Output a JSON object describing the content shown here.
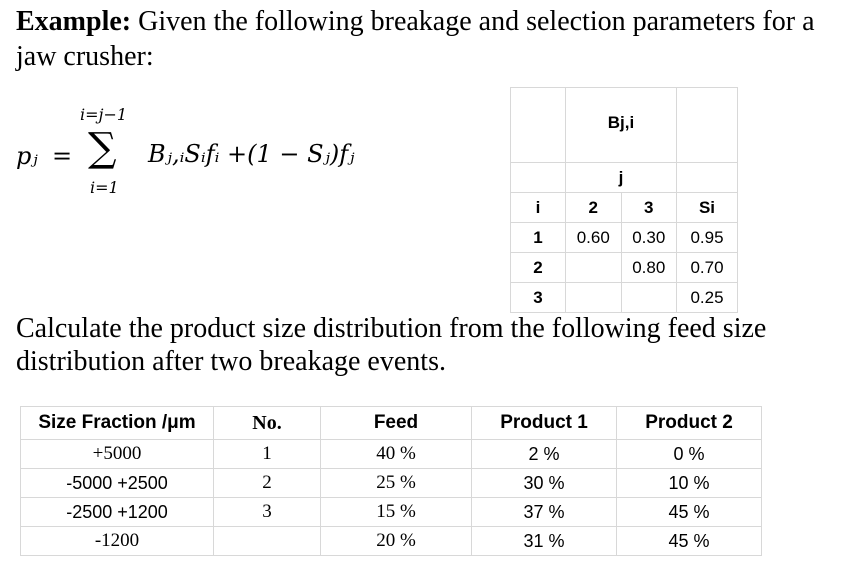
{
  "intro": {
    "label": "Example:",
    "text": " Given the following breakage and selection parameters for a jaw crusher:"
  },
  "equation": {
    "upper_limit": "i=j−1",
    "sigma": "∑",
    "lower_limit": "i=1",
    "lhs": "pⱼ",
    "equals": "=",
    "rhs": "Bⱼ,ᵢSᵢfᵢ +(1 − Sⱼ)fⱼ"
  },
  "breakage_table": {
    "header_top": "Bj,i",
    "header_j": "j",
    "header_i": "i",
    "col_labels": [
      "2",
      "3",
      "Si"
    ],
    "rows": [
      {
        "i": "1",
        "c2": "0.60",
        "c3": "0.30",
        "si": "0.95"
      },
      {
        "i": "2",
        "c2": "",
        "c3": "0.80",
        "si": "0.70"
      },
      {
        "i": "3",
        "c2": "",
        "c3": "",
        "si": "0.25"
      }
    ]
  },
  "question": "Calculate the product size distribution from the following feed size distribution after two breakage events.",
  "distribution_table": {
    "headers": [
      "Size Fraction /μm",
      "No.",
      "Feed",
      "Product 1",
      "Product 2"
    ],
    "rows": [
      {
        "size": "+5000",
        "no": "1",
        "feed": "40 %",
        "p1": "2 %",
        "p2": "0 %"
      },
      {
        "size": "-5000 +2500",
        "no": "2",
        "feed": "25 %",
        "p1": "30 %",
        "p2": "10 %"
      },
      {
        "size": "-2500 +1200",
        "no": "3",
        "feed": "15 %",
        "p1": "37 %",
        "p2": "45 %"
      },
      {
        "size": "-1200",
        "no": "",
        "feed": "20 %",
        "p1": "31 %",
        "p2": "45 %"
      }
    ]
  }
}
